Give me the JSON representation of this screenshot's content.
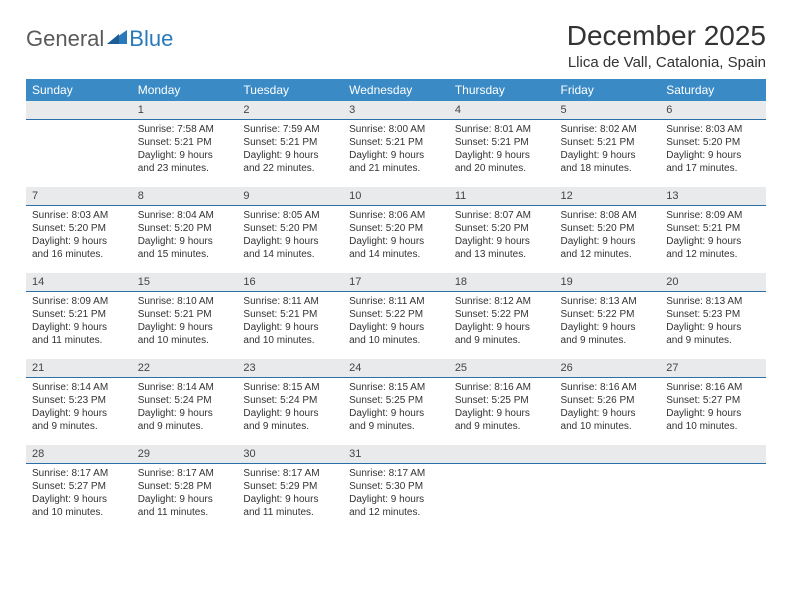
{
  "logo": {
    "general": "General",
    "blue": "Blue"
  },
  "title": "December 2025",
  "location": "Llica de Vall, Catalonia, Spain",
  "dow": [
    "Sunday",
    "Monday",
    "Tuesday",
    "Wednesday",
    "Thursday",
    "Friday",
    "Saturday"
  ],
  "colors": {
    "header_bg": "#3a8ac6",
    "header_text": "#ffffff",
    "daynum_bg": "#e9eaeb",
    "daynum_border": "#2a6fa8",
    "logo_general": "#5a5a5a",
    "logo_blue": "#2a7ab9",
    "body_text": "#333333",
    "page_bg": "#ffffff"
  },
  "weeks": [
    [
      {
        "n": "",
        "body": ""
      },
      {
        "n": "1",
        "body": "Sunrise: 7:58 AM\nSunset: 5:21 PM\nDaylight: 9 hours and 23 minutes."
      },
      {
        "n": "2",
        "body": "Sunrise: 7:59 AM\nSunset: 5:21 PM\nDaylight: 9 hours and 22 minutes."
      },
      {
        "n": "3",
        "body": "Sunrise: 8:00 AM\nSunset: 5:21 PM\nDaylight: 9 hours and 21 minutes."
      },
      {
        "n": "4",
        "body": "Sunrise: 8:01 AM\nSunset: 5:21 PM\nDaylight: 9 hours and 20 minutes."
      },
      {
        "n": "5",
        "body": "Sunrise: 8:02 AM\nSunset: 5:21 PM\nDaylight: 9 hours and 18 minutes."
      },
      {
        "n": "6",
        "body": "Sunrise: 8:03 AM\nSunset: 5:20 PM\nDaylight: 9 hours and 17 minutes."
      }
    ],
    [
      {
        "n": "7",
        "body": "Sunrise: 8:03 AM\nSunset: 5:20 PM\nDaylight: 9 hours and 16 minutes."
      },
      {
        "n": "8",
        "body": "Sunrise: 8:04 AM\nSunset: 5:20 PM\nDaylight: 9 hours and 15 minutes."
      },
      {
        "n": "9",
        "body": "Sunrise: 8:05 AM\nSunset: 5:20 PM\nDaylight: 9 hours and 14 minutes."
      },
      {
        "n": "10",
        "body": "Sunrise: 8:06 AM\nSunset: 5:20 PM\nDaylight: 9 hours and 14 minutes."
      },
      {
        "n": "11",
        "body": "Sunrise: 8:07 AM\nSunset: 5:20 PM\nDaylight: 9 hours and 13 minutes."
      },
      {
        "n": "12",
        "body": "Sunrise: 8:08 AM\nSunset: 5:20 PM\nDaylight: 9 hours and 12 minutes."
      },
      {
        "n": "13",
        "body": "Sunrise: 8:09 AM\nSunset: 5:21 PM\nDaylight: 9 hours and 12 minutes."
      }
    ],
    [
      {
        "n": "14",
        "body": "Sunrise: 8:09 AM\nSunset: 5:21 PM\nDaylight: 9 hours and 11 minutes."
      },
      {
        "n": "15",
        "body": "Sunrise: 8:10 AM\nSunset: 5:21 PM\nDaylight: 9 hours and 10 minutes."
      },
      {
        "n": "16",
        "body": "Sunrise: 8:11 AM\nSunset: 5:21 PM\nDaylight: 9 hours and 10 minutes."
      },
      {
        "n": "17",
        "body": "Sunrise: 8:11 AM\nSunset: 5:22 PM\nDaylight: 9 hours and 10 minutes."
      },
      {
        "n": "18",
        "body": "Sunrise: 8:12 AM\nSunset: 5:22 PM\nDaylight: 9 hours and 9 minutes."
      },
      {
        "n": "19",
        "body": "Sunrise: 8:13 AM\nSunset: 5:22 PM\nDaylight: 9 hours and 9 minutes."
      },
      {
        "n": "20",
        "body": "Sunrise: 8:13 AM\nSunset: 5:23 PM\nDaylight: 9 hours and 9 minutes."
      }
    ],
    [
      {
        "n": "21",
        "body": "Sunrise: 8:14 AM\nSunset: 5:23 PM\nDaylight: 9 hours and 9 minutes."
      },
      {
        "n": "22",
        "body": "Sunrise: 8:14 AM\nSunset: 5:24 PM\nDaylight: 9 hours and 9 minutes."
      },
      {
        "n": "23",
        "body": "Sunrise: 8:15 AM\nSunset: 5:24 PM\nDaylight: 9 hours and 9 minutes."
      },
      {
        "n": "24",
        "body": "Sunrise: 8:15 AM\nSunset: 5:25 PM\nDaylight: 9 hours and 9 minutes."
      },
      {
        "n": "25",
        "body": "Sunrise: 8:16 AM\nSunset: 5:25 PM\nDaylight: 9 hours and 9 minutes."
      },
      {
        "n": "26",
        "body": "Sunrise: 8:16 AM\nSunset: 5:26 PM\nDaylight: 9 hours and 10 minutes."
      },
      {
        "n": "27",
        "body": "Sunrise: 8:16 AM\nSunset: 5:27 PM\nDaylight: 9 hours and 10 minutes."
      }
    ],
    [
      {
        "n": "28",
        "body": "Sunrise: 8:17 AM\nSunset: 5:27 PM\nDaylight: 9 hours and 10 minutes."
      },
      {
        "n": "29",
        "body": "Sunrise: 8:17 AM\nSunset: 5:28 PM\nDaylight: 9 hours and 11 minutes."
      },
      {
        "n": "30",
        "body": "Sunrise: 8:17 AM\nSunset: 5:29 PM\nDaylight: 9 hours and 11 minutes."
      },
      {
        "n": "31",
        "body": "Sunrise: 8:17 AM\nSunset: 5:30 PM\nDaylight: 9 hours and 12 minutes."
      },
      {
        "n": "",
        "body": ""
      },
      {
        "n": "",
        "body": ""
      },
      {
        "n": "",
        "body": ""
      }
    ]
  ]
}
